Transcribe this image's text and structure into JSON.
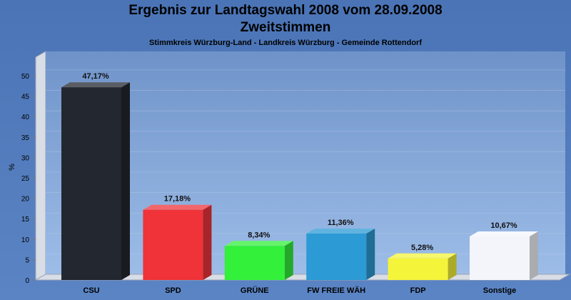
{
  "chart_data": {
    "type": "bar",
    "title": "Ergebnis zur Landtagswahl 2008 vom 28.09.2008",
    "subtitle": "Zweitstimmen",
    "subsubtitle": "Stimmkreis Würzburg-Land - Landkreis Würzburg - Gemeinde Rottendorf",
    "ylabel": "%",
    "ylim": [
      0,
      50
    ],
    "yticks": [
      0,
      5,
      10,
      15,
      20,
      25,
      30,
      35,
      40,
      45,
      50
    ],
    "categories": [
      "CSU",
      "SPD",
      "GRÜNE",
      "FW FREIE WÄH",
      "FDP",
      "Sonstige"
    ],
    "values": [
      47.17,
      17.18,
      8.34,
      11.36,
      5.28,
      10.67
    ],
    "value_labels": [
      "47,17%",
      "17,18%",
      "8,34%",
      "11,36%",
      "5,28%",
      "10,67%"
    ],
    "colors": [
      "#23272f",
      "#ef3339",
      "#33f03b",
      "#2c9ad4",
      "#f4f43a",
      "#f3f5fb"
    ],
    "grid": true
  }
}
